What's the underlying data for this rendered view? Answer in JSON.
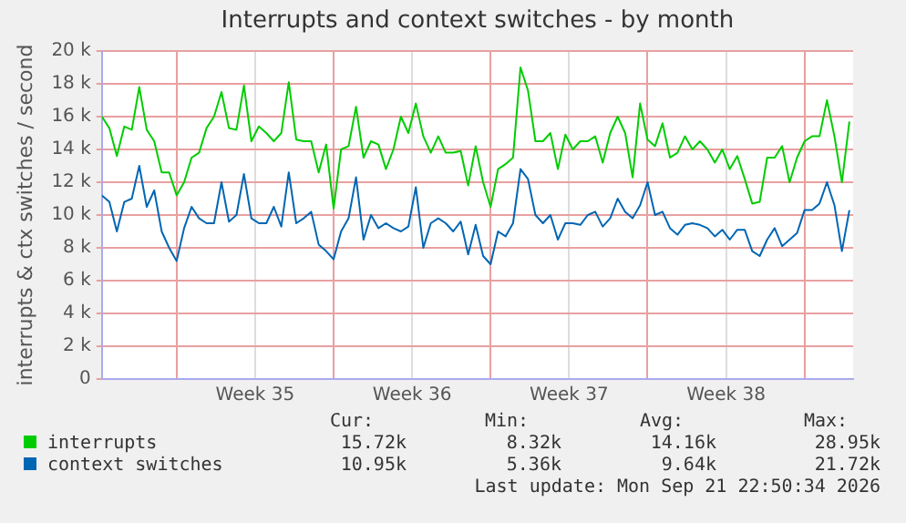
{
  "chart_data": {
    "type": "line",
    "title": "Interrupts and context switches - by month",
    "ylabel": "interrupts & ctx switches / second",
    "x": [
      "2026-08-20T16:00",
      "2026-08-21T00:00",
      "2026-08-21T08:00",
      "2026-08-21T16:00",
      "2026-08-22T00:00",
      "2026-08-22T08:00",
      "2026-08-22T16:00",
      "2026-08-23T00:00",
      "2026-08-23T08:00",
      "2026-08-23T16:00",
      "2026-08-24T00:00",
      "2026-08-24T08:00",
      "2026-08-24T16:00",
      "2026-08-25T00:00",
      "2026-08-25T08:00",
      "2026-08-25T16:00",
      "2026-08-26T00:00",
      "2026-08-26T08:00",
      "2026-08-26T16:00",
      "2026-08-27T00:00",
      "2026-08-27T08:00",
      "2026-08-27T16:00",
      "2026-08-28T00:00",
      "2026-08-28T08:00",
      "2026-08-28T16:00",
      "2026-08-29T00:00",
      "2026-08-29T08:00",
      "2026-08-29T16:00",
      "2026-08-30T00:00",
      "2026-08-30T08:00",
      "2026-08-30T16:00",
      "2026-08-31T00:00",
      "2026-08-31T08:00",
      "2026-08-31T16:00",
      "2026-09-01T00:00",
      "2026-09-01T08:00",
      "2026-09-01T16:00",
      "2026-09-02T00:00",
      "2026-09-02T08:00",
      "2026-09-02T16:00",
      "2026-09-03T00:00",
      "2026-09-03T08:00",
      "2026-09-03T16:00",
      "2026-09-04T00:00",
      "2026-09-04T08:00",
      "2026-09-04T16:00",
      "2026-09-05T00:00",
      "2026-09-05T08:00",
      "2026-09-05T16:00",
      "2026-09-06T00:00",
      "2026-09-06T08:00",
      "2026-09-06T16:00",
      "2026-09-07T00:00",
      "2026-09-07T08:00",
      "2026-09-07T16:00",
      "2026-09-08T00:00",
      "2026-09-08T08:00",
      "2026-09-08T16:00",
      "2026-09-09T00:00",
      "2026-09-09T08:00",
      "2026-09-09T16:00",
      "2026-09-10T00:00",
      "2026-09-10T08:00",
      "2026-09-10T16:00",
      "2026-09-11T00:00",
      "2026-09-11T08:00",
      "2026-09-11T16:00",
      "2026-09-12T00:00",
      "2026-09-12T08:00",
      "2026-09-12T16:00",
      "2026-09-13T00:00",
      "2026-09-13T08:00",
      "2026-09-13T16:00",
      "2026-09-14T00:00",
      "2026-09-14T08:00",
      "2026-09-14T16:00",
      "2026-09-15T00:00",
      "2026-09-15T08:00",
      "2026-09-15T16:00",
      "2026-09-16T00:00",
      "2026-09-16T08:00",
      "2026-09-16T16:00",
      "2026-09-17T00:00",
      "2026-09-17T08:00",
      "2026-09-17T16:00",
      "2026-09-18T00:00",
      "2026-09-18T08:00",
      "2026-09-18T16:00",
      "2026-09-19T00:00",
      "2026-09-19T08:00",
      "2026-09-19T16:00",
      "2026-09-20T00:00",
      "2026-09-20T08:00",
      "2026-09-20T16:00",
      "2026-09-21T00:00",
      "2026-09-21T08:00",
      "2026-09-21T16:00",
      "2026-09-22T00:00",
      "2026-09-22T08:00",
      "2026-09-22T16:00",
      "2026-09-23T00:00"
    ],
    "series": [
      {
        "name": "interrupts",
        "color": "#00cc00",
        "values": [
          16000,
          15300,
          13600,
          15400,
          15200,
          17800,
          15200,
          14500,
          12600,
          12600,
          11200,
          12000,
          13500,
          13800,
          15300,
          16000,
          17500,
          15300,
          15200,
          17900,
          14500,
          15400,
          15000,
          14500,
          15000,
          18100,
          14600,
          14500,
          14500,
          12600,
          14300,
          10400,
          14000,
          14200,
          16600,
          13500,
          14500,
          14300,
          12800,
          14000,
          16000,
          15000,
          16800,
          14800,
          13800,
          14800,
          13800,
          13800,
          13900,
          11800,
          14200,
          12000,
          10500,
          12800,
          13100,
          13500,
          19000,
          17600,
          14500,
          14500,
          15000,
          12800,
          14900,
          14000,
          14500,
          14500,
          14800,
          13200,
          15000,
          16000,
          15000,
          12300,
          16800,
          14600,
          14200,
          15600,
          13500,
          13800,
          14800,
          14000,
          14500,
          14000,
          13200,
          14000,
          12800,
          13600,
          12200,
          10700,
          10800,
          13500,
          13500,
          14200,
          12000,
          13500,
          14500,
          14800,
          14800,
          17000,
          14800,
          12000,
          15700
        ]
      },
      {
        "name": "context switches",
        "color": "#0066b3",
        "values": [
          11200,
          10800,
          9000,
          10800,
          11000,
          13000,
          10500,
          11500,
          9000,
          8000,
          7200,
          9200,
          10500,
          9800,
          9500,
          9500,
          12000,
          9600,
          10000,
          12500,
          9800,
          9500,
          9500,
          10500,
          9300,
          12600,
          9500,
          9800,
          10200,
          8200,
          7800,
          7300,
          9000,
          9800,
          12300,
          8500,
          10000,
          9200,
          9500,
          9200,
          9000,
          9300,
          11700,
          8000,
          9500,
          9800,
          9500,
          9000,
          9600,
          7600,
          9400,
          7500,
          7000,
          9000,
          8700,
          9500,
          12800,
          12200,
          10000,
          9500,
          10000,
          8500,
          9500,
          9500,
          9400,
          10000,
          10200,
          9300,
          9800,
          11000,
          10200,
          9800,
          10600,
          12000,
          10000,
          10200,
          9200,
          8800,
          9400,
          9500,
          9400,
          9200,
          8700,
          9100,
          8500,
          9100,
          9100,
          7800,
          7500,
          8500,
          9200,
          8100,
          8500,
          8900,
          10300,
          10300,
          10700,
          12000,
          10600,
          7800,
          10300
        ]
      }
    ],
    "xlim": [
      "2026-08-20T16:00",
      "2026-09-23T04:00"
    ],
    "xticks": [
      {
        "value": "2026-08-24T00:00",
        "label": null
      },
      {
        "value": "2026-08-27T12:00",
        "label": "Week 35"
      },
      {
        "value": "2026-08-31T00:00",
        "label": null
      },
      {
        "value": "2026-09-03T12:00",
        "label": "Week 36"
      },
      {
        "value": "2026-09-07T00:00",
        "label": null
      },
      {
        "value": "2026-09-10T12:00",
        "label": "Week 37"
      },
      {
        "value": "2026-09-14T00:00",
        "label": null
      },
      {
        "value": "2026-09-17T12:00",
        "label": "Week 38"
      },
      {
        "value": "2026-09-21T00:00",
        "label": null
      }
    ],
    "ylim": [
      0,
      20000
    ],
    "yticks": [
      0,
      {
        "value": 2000,
        "label": "2 k"
      },
      {
        "value": 4000,
        "label": "4 k"
      },
      {
        "value": 6000,
        "label": "6 k"
      },
      {
        "value": 8000,
        "label": "8 k"
      },
      {
        "value": 10000,
        "label": "10 k"
      },
      {
        "value": 12000,
        "label": "12 k"
      },
      {
        "value": 14000,
        "label": "14 k"
      },
      {
        "value": 16000,
        "label": "16 k"
      },
      {
        "value": 18000,
        "label": "18 k"
      },
      {
        "value": 20000,
        "label": "20 k"
      }
    ],
    "grid": true,
    "legend": "bottom",
    "marker": "none",
    "line_style": "solid",
    "annotations": [
      "Cur:",
      "Min:",
      "Avg:",
      "Max:",
      "15.72k",
      "8.32k",
      "14.16k",
      "28.95k",
      "10.95k",
      "5.36k",
      "9.64k",
      "21.72k",
      "Last update: Mon Sep 21 22:50:34 2026"
    ]
  }
}
